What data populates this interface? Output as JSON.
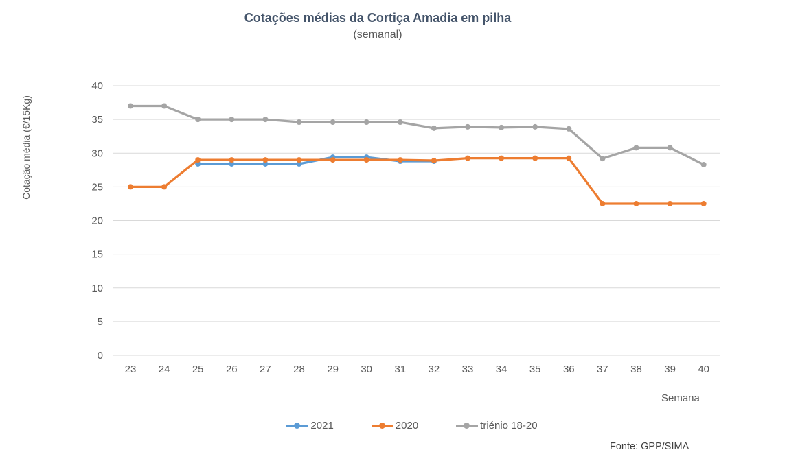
{
  "chart_data": {
    "type": "line",
    "title": "Cotações médias da Cortiça Amadia em pilha",
    "subtitle": "(semanal)",
    "xlabel": "Semana",
    "ylabel": "Cotação média (€/15Kg)",
    "source": "Fonte: GPP/SIMA",
    "ylim": [
      0,
      40
    ],
    "yticks": [
      0,
      5,
      10,
      15,
      20,
      25,
      30,
      35,
      40
    ],
    "grid": true,
    "legend_position": "bottom",
    "categories": [
      23,
      24,
      25,
      26,
      27,
      28,
      29,
      30,
      31,
      32,
      33,
      34,
      35,
      36,
      37,
      38,
      39,
      40
    ],
    "series": [
      {
        "name": "2021",
        "color": "#5B9BD5",
        "values": [
          null,
          null,
          28.4,
          28.4,
          28.4,
          28.4,
          29.4,
          29.4,
          28.8,
          28.8,
          null,
          null,
          null,
          null,
          null,
          null,
          null,
          null
        ]
      },
      {
        "name": "2020",
        "color": "#ED7D31",
        "values": [
          25,
          25,
          29,
          29,
          29,
          29,
          29,
          29,
          29,
          28.9,
          29.25,
          29.25,
          29.25,
          29.25,
          22.5,
          22.5,
          22.5,
          22.5
        ]
      },
      {
        "name": "triénio 18-20",
        "color": "#A5A5A5",
        "values": [
          37,
          37,
          35,
          35,
          35,
          34.6,
          34.6,
          34.6,
          34.6,
          33.7,
          33.9,
          33.8,
          33.9,
          33.6,
          29.2,
          30.8,
          30.8,
          28.3
        ]
      }
    ],
    "colors": {
      "gridline": "#D9D9D9",
      "tick_text": "#595959",
      "title_text": "#44546A"
    }
  }
}
